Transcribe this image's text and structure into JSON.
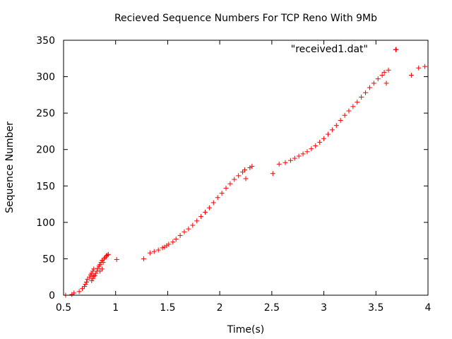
{
  "chart_data": {
    "type": "scatter",
    "title": "Recieved Sequence Numbers For TCP Reno With 9Mb",
    "xlabel": "Time(s)",
    "ylabel": "Sequence Number",
    "xlim": [
      0.5,
      4
    ],
    "ylim": [
      0,
      350
    ],
    "xticks": [
      "0.5",
      "1",
      "1.5",
      "2",
      "2.5",
      "3",
      "3.5",
      "4"
    ],
    "yticks": [
      "0",
      "50",
      "100",
      "150",
      "200",
      "250",
      "300",
      "350"
    ],
    "grid": false,
    "legend_position": "top-right",
    "marker": "plus",
    "color": "#ff0000",
    "series": [
      {
        "name": "\"received1.dat\"",
        "x": [
          0.52,
          0.58,
          0.6,
          0.65,
          0.68,
          0.7,
          0.71,
          0.72,
          0.73,
          0.75,
          0.76,
          0.77,
          0.77,
          0.78,
          0.78,
          0.79,
          0.79,
          0.8,
          0.81,
          0.82,
          0.83,
          0.84,
          0.85,
          0.85,
          0.86,
          0.87,
          0.87,
          0.88,
          0.89,
          0.9,
          0.91,
          0.92,
          0.93,
          1.01,
          1.27,
          1.33,
          1.37,
          1.41,
          1.45,
          1.47,
          1.49,
          1.51,
          1.55,
          1.58,
          1.62,
          1.66,
          1.7,
          1.74,
          1.78,
          1.82,
          1.86,
          1.9,
          1.94,
          1.98,
          2.02,
          2.06,
          2.1,
          2.14,
          2.18,
          2.22,
          2.24,
          2.25,
          2.29,
          2.31,
          2.51,
          2.57,
          2.63,
          2.68,
          2.72,
          2.76,
          2.8,
          2.84,
          2.88,
          2.92,
          2.96,
          3.0,
          3.04,
          3.08,
          3.12,
          3.16,
          3.2,
          3.24,
          3.28,
          3.32,
          3.36,
          3.4,
          3.44,
          3.48,
          3.52,
          3.56,
          3.58,
          3.6,
          3.62,
          3.69,
          3.84,
          3.91,
          3.97
        ],
        "y": [
          0,
          1,
          3,
          5,
          9,
          12,
          15,
          18,
          22,
          25,
          28,
          20,
          30,
          23,
          33,
          26,
          36,
          27,
          30,
          33,
          37,
          40,
          42,
          33,
          45,
          36,
          48,
          45,
          50,
          52,
          54,
          55,
          56,
          49,
          50,
          58,
          60,
          62,
          65,
          66,
          68,
          70,
          73,
          77,
          82,
          87,
          91,
          96,
          102,
          108,
          114,
          120,
          127,
          134,
          140,
          147,
          153,
          159,
          164,
          169,
          172,
          160,
          175,
          177,
          167,
          180,
          182,
          185,
          188,
          191,
          194,
          197,
          201,
          205,
          210,
          215,
          221,
          227,
          233,
          240,
          247,
          253,
          259,
          265,
          272,
          278,
          285,
          291,
          297,
          302,
          306,
          291,
          309,
          337,
          302,
          312,
          314
        ]
      }
    ]
  }
}
